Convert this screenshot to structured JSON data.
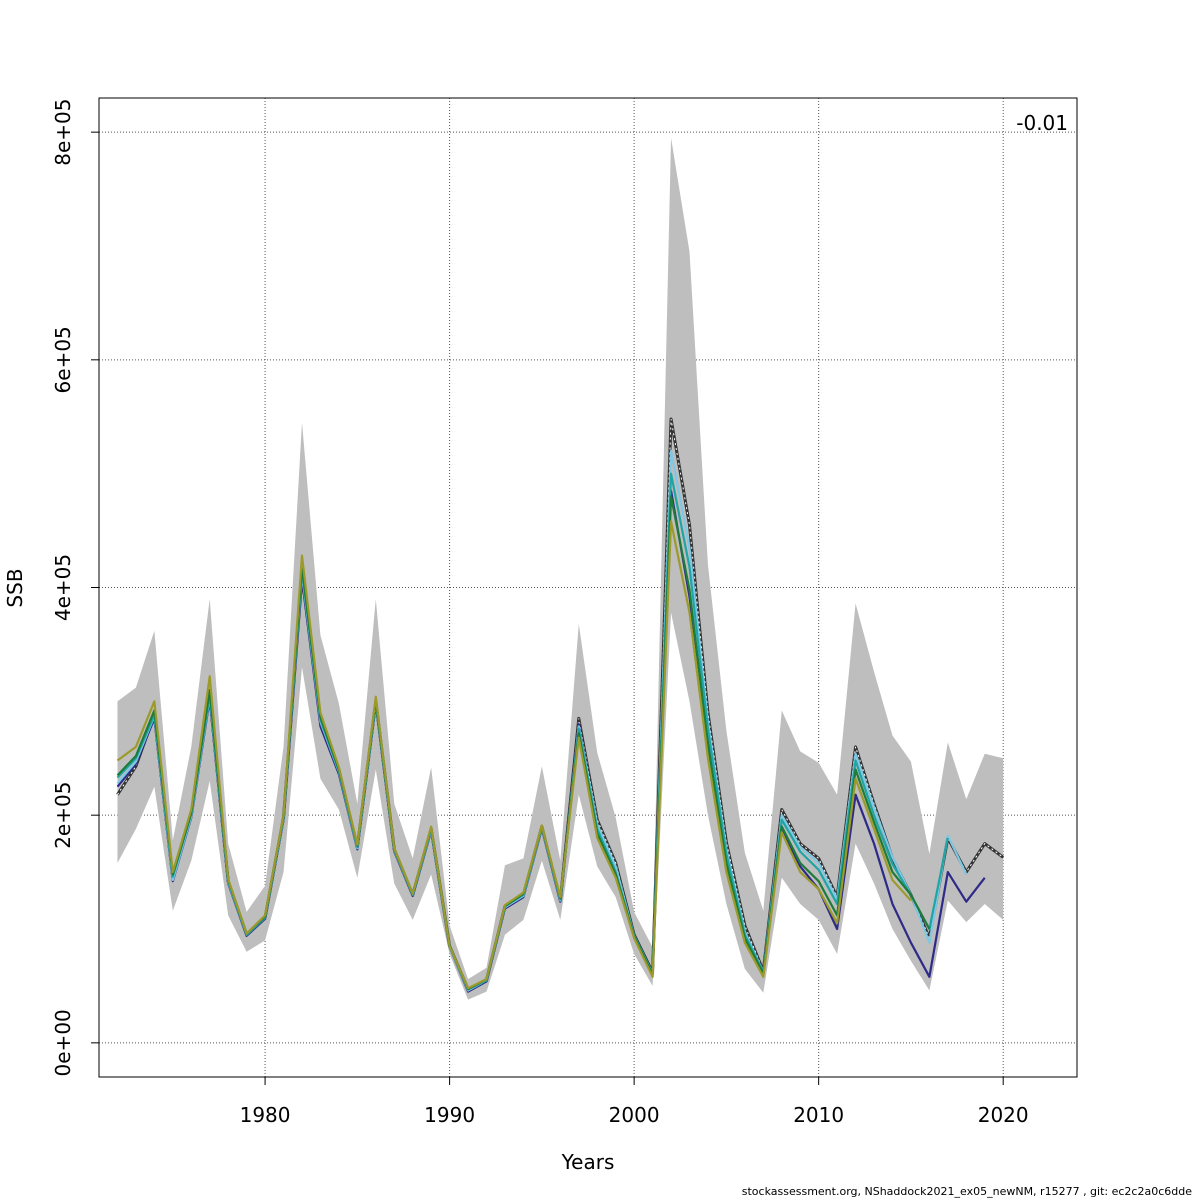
{
  "chart_data": {
    "type": "line",
    "title": "",
    "xlabel": "Years",
    "ylabel": "SSB",
    "xlim": [
      1971,
      2024
    ],
    "ylim": [
      -30000,
      830000
    ],
    "x_ticks": [
      1980,
      1990,
      2000,
      2010,
      2020
    ],
    "x_tick_labels": [
      "1980",
      "1990",
      "2000",
      "2010",
      "2020"
    ],
    "y_ticks": [
      0,
      200000,
      400000,
      600000,
      800000
    ],
    "y_tick_labels": [
      "0e+00",
      "2e+05",
      "4e+05",
      "6e+05",
      "8e+05"
    ],
    "grid": true,
    "annotation": "-0.01",
    "confidence_band": {
      "x": [
        1972,
        1973,
        1974,
        1975,
        1976,
        1977,
        1978,
        1979,
        1980,
        1981,
        1982,
        1983,
        1984,
        1985,
        1986,
        1987,
        1988,
        1989,
        1990,
        1991,
        1992,
        1993,
        1994,
        1995,
        1996,
        1997,
        1998,
        1999,
        2000,
        2001,
        2002,
        2003,
        2004,
        2005,
        2006,
        2007,
        2008,
        2009,
        2010,
        2011,
        2012,
        2013,
        2014,
        2015,
        2016,
        2017,
        2018,
        2019,
        2020
      ],
      "lower": [
        158000,
        188000,
        225000,
        116000,
        160000,
        230000,
        112000,
        80000,
        90000,
        150000,
        330000,
        232000,
        205000,
        145000,
        240000,
        140000,
        108000,
        148000,
        78000,
        38000,
        45000,
        95000,
        108000,
        160000,
        108000,
        218000,
        155000,
        128000,
        78000,
        50000,
        378000,
        300000,
        200000,
        122000,
        65000,
        44000,
        145000,
        122000,
        108000,
        78000,
        175000,
        140000,
        100000,
        72000,
        46000,
        125000,
        106000,
        122000,
        108000
      ],
      "upper": [
        300000,
        312000,
        362000,
        178000,
        260000,
        390000,
        175000,
        115000,
        138000,
        260000,
        545000,
        358000,
        298000,
        210000,
        390000,
        210000,
        162000,
        242000,
        103000,
        56000,
        66000,
        156000,
        162000,
        243000,
        160000,
        368000,
        255000,
        198000,
        115000,
        84000,
        795000,
        695000,
        420000,
        274000,
        167000,
        116000,
        292000,
        256000,
        246000,
        218000,
        386000,
        326000,
        270000,
        247000,
        166000,
        264000,
        214000,
        254000,
        250000
      ]
    },
    "series": [
      {
        "color": "#333333",
        "dashed": true,
        "x": [
          1972,
          1973,
          1974,
          1975,
          1976,
          1977,
          1978,
          1979,
          1980,
          1981,
          1982,
          1983,
          1984,
          1985,
          1986,
          1987,
          1988,
          1989,
          1990,
          1991,
          1992,
          1993,
          1994,
          1995,
          1996,
          1997,
          1998,
          1999,
          2000,
          2001,
          2002,
          2003,
          2004,
          2005,
          2006,
          2007,
          2008,
          2009,
          2010,
          2011,
          2012,
          2013,
          2014,
          2015,
          2016,
          2017,
          2018,
          2019,
          2020
        ],
        "values": [
          218000,
          243000,
          288000,
          145000,
          200000,
          305000,
          142000,
          95000,
          110000,
          198000,
          410000,
          285000,
          240000,
          172000,
          300000,
          170000,
          130000,
          188000,
          85000,
          47000,
          55000,
          120000,
          130000,
          190000,
          125000,
          285000,
          196000,
          158000,
          95000,
          62000,
          548000,
          455000,
          290000,
          176000,
          103000,
          63000,
          205000,
          175000,
          162000,
          128000,
          260000,
          210000,
          162000,
          130000,
          92000,
          180000,
          150000,
          175000,
          163000
        ]
      },
      {
        "color": "#2e2a88",
        "x": [
          1972,
          1973,
          1974,
          1975,
          1976,
          1977,
          1978,
          1979,
          1980,
          1981,
          1982,
          1983,
          1984,
          1985,
          1986,
          1987,
          1988,
          1989,
          1990,
          1991,
          1992,
          1993,
          1994,
          1995,
          1996,
          1997,
          1998,
          1999,
          2000,
          2001,
          2002,
          2003,
          2004,
          2005,
          2006,
          2007,
          2008,
          2009,
          2010,
          2011,
          2012,
          2013,
          2014,
          2015,
          2016,
          2017,
          2018,
          2019
        ],
        "values": [
          225000,
          245000,
          285000,
          142000,
          198000,
          302000,
          140000,
          94000,
          109000,
          196000,
          408000,
          278000,
          236000,
          170000,
          298000,
          168000,
          129000,
          186000,
          84000,
          45000,
          54000,
          118000,
          128000,
          188000,
          124000,
          280000,
          190000,
          152000,
          93000,
          60000,
          485000,
          392000,
          268000,
          160000,
          90000,
          60000,
          188000,
          155000,
          135000,
          100000,
          218000,
          175000,
          122000,
          88000,
          58000,
          150000,
          124000,
          145000
        ]
      },
      {
        "color": "#7ec8e3",
        "x": [
          1972,
          1973,
          1974,
          1975,
          1976,
          1977,
          1978,
          1979,
          1980,
          1981,
          1982,
          1983,
          1984,
          1985,
          1986,
          1987,
          1988,
          1989,
          1990,
          1991,
          1992,
          1993,
          1994,
          1995,
          1996,
          1997,
          1998,
          1999,
          2000,
          2001,
          2002,
          2003,
          2004,
          2005,
          2006,
          2007,
          2008,
          2009,
          2010,
          2011,
          2012,
          2013,
          2014,
          2015,
          2016,
          2017,
          2018
        ],
        "values": [
          228000,
          247000,
          287000,
          143000,
          199000,
          304000,
          141000,
          95000,
          110000,
          197000,
          412000,
          282000,
          238000,
          171000,
          299000,
          169000,
          130000,
          187000,
          84000,
          46000,
          55000,
          119000,
          129000,
          189000,
          125000,
          278000,
          192000,
          155000,
          94000,
          61000,
          520000,
          435000,
          282000,
          170000,
          98000,
          62000,
          200000,
          172000,
          158000,
          126000,
          254000,
          207000,
          163000,
          130000,
          88000,
          182000,
          148000
        ]
      },
      {
        "color": "#1fa5a5",
        "x": [
          1972,
          1973,
          1974,
          1975,
          1976,
          1977,
          1978,
          1979,
          1980,
          1981,
          1982,
          1983,
          1984,
          1985,
          1986,
          1987,
          1988,
          1989,
          1990,
          1991,
          1992,
          1993,
          1994,
          1995,
          1996,
          1997,
          1998,
          1999,
          2000,
          2001,
          2002,
          2003,
          2004,
          2005,
          2006,
          2007,
          2008,
          2009,
          2010,
          2011,
          2012,
          2013,
          2014,
          2015,
          2016,
          2017
        ],
        "values": [
          233000,
          250000,
          288000,
          146000,
          201000,
          306000,
          142000,
          95000,
          110000,
          198000,
          415000,
          284000,
          239000,
          172000,
          300000,
          170000,
          130000,
          188000,
          85000,
          47000,
          55000,
          120000,
          130000,
          190000,
          126000,
          276000,
          188000,
          150000,
          94000,
          61000,
          500000,
          418000,
          276000,
          166000,
          95000,
          62000,
          196000,
          168000,
          152000,
          122000,
          248000,
          200000,
          157000,
          130000,
          100000,
          180000
        ]
      },
      {
        "color": "#1e7b3a",
        "x": [
          1972,
          1973,
          1974,
          1975,
          1976,
          1977,
          1978,
          1979,
          1980,
          1981,
          1982,
          1983,
          1984,
          1985,
          1986,
          1987,
          1988,
          1989,
          1990,
          1991,
          1992,
          1993,
          1994,
          1995,
          1996,
          1997,
          1998,
          1999,
          2000,
          2001,
          2002,
          2003,
          2004,
          2005,
          2006,
          2007,
          2008,
          2009,
          2010,
          2011,
          2012,
          2013,
          2014,
          2015,
          2016
        ],
        "values": [
          235000,
          252000,
          292000,
          148000,
          202000,
          310000,
          143000,
          96000,
          111000,
          199000,
          418000,
          286000,
          240000,
          173000,
          301000,
          170000,
          131000,
          189000,
          85000,
          47000,
          56000,
          120000,
          131000,
          190000,
          127000,
          272000,
          184000,
          148000,
          93000,
          60000,
          480000,
          398000,
          262000,
          158000,
          92000,
          61000,
          190000,
          158000,
          142000,
          112000,
          240000,
          194000,
          150000,
          130000,
          100000
        ]
      },
      {
        "color": "#9c9a2a",
        "x": [
          1972,
          1973,
          1974,
          1975,
          1976,
          1977,
          1978,
          1979,
          1980,
          1981,
          1982,
          1983,
          1984,
          1985,
          1986,
          1987,
          1988,
          1989,
          1990,
          1991,
          1992,
          1993,
          1994,
          1995,
          1996,
          1997,
          1998,
          1999,
          2000,
          2001,
          2002,
          2003,
          2004,
          2005,
          2006,
          2007,
          2008,
          2009,
          2010,
          2011,
          2012,
          2013,
          2014,
          2015
        ],
        "values": [
          248000,
          260000,
          300000,
          150000,
          205000,
          322000,
          144000,
          96000,
          112000,
          200000,
          428000,
          290000,
          242000,
          174000,
          304000,
          171000,
          131000,
          190000,
          85000,
          48000,
          56000,
          121000,
          132000,
          191000,
          128000,
          268000,
          180000,
          145000,
          92000,
          58000,
          458000,
          378000,
          250000,
          150000,
          88000,
          58000,
          185000,
          150000,
          135000,
          105000,
          232000,
          188000,
          143000,
          125000
        ]
      }
    ]
  },
  "footer_text": "stockassessment.org, NShaddock2021_ex05_newNM, r15277 , git: ec2c2a0c6dde"
}
